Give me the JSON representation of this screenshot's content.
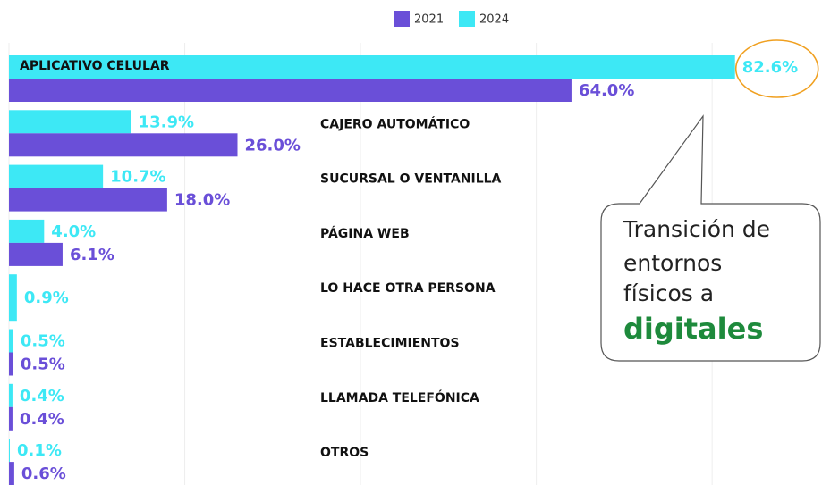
{
  "chart_data": {
    "type": "hbar",
    "categories": [
      "APLICATIVO CELULAR",
      "CAJERO AUTOMÁTICO",
      "SUCURSAL O VENTANILLA",
      "PÁGINA WEB",
      "LO HACE OTRA PERSONA",
      "ESTABLECIMIENTOS",
      "LLAMADA TELEFÓNICA",
      "OTROS"
    ],
    "series": [
      {
        "name": "2021",
        "color": "#6a4fd8",
        "values": [
          64.0,
          26.0,
          18.0,
          6.1,
          null,
          0.5,
          0.4,
          0.6
        ],
        "value_labels": [
          "64.0%",
          "26.0%",
          "18.0%",
          "6.1%",
          null,
          "0.5%",
          "0.4%",
          "0.6%"
        ]
      },
      {
        "name": "2024",
        "color": "#3de8f5",
        "values": [
          82.6,
          13.9,
          10.7,
          4.0,
          0.9,
          0.5,
          0.4,
          0.1
        ],
        "value_labels": [
          "82.6%",
          "13.9%",
          "10.7%",
          "4.0%",
          "0.9%",
          "0.5%",
          "0.4%",
          "0.1%"
        ]
      }
    ],
    "xlim": [
      0,
      92.5
    ],
    "xticks": [
      0,
      20,
      40,
      60,
      80
    ],
    "grid": true,
    "callout": [
      "Transición de",
      "entornos",
      "físicos a"
    ],
    "callout_emphasis": "digitales",
    "callout_emphasis_color": "#1e8a3c"
  }
}
